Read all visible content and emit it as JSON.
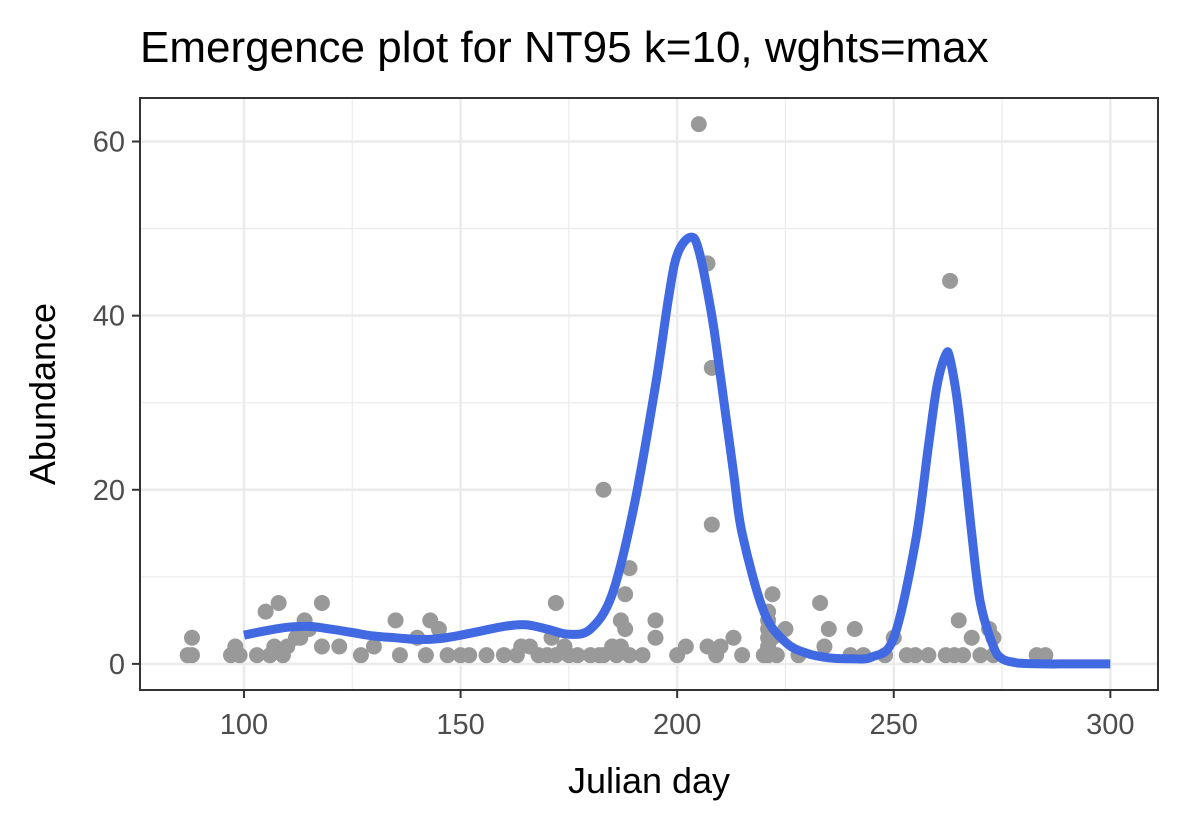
{
  "chart_data": {
    "type": "scatter",
    "title": "Emergence plot for NT95 k=10, wghts=max",
    "xlabel": "Julian day",
    "ylabel": "Abundance",
    "xlim": [
      76,
      311
    ],
    "ylim": [
      -3,
      65
    ],
    "xticks": [
      100,
      150,
      200,
      250,
      300
    ],
    "yticks": [
      0,
      20,
      40,
      60
    ],
    "xticks_minor": [
      125,
      175,
      225,
      275
    ],
    "yticks_minor": [
      10,
      30,
      50
    ],
    "grid": true,
    "legend": "none",
    "colors": {
      "points": "#999999",
      "curve": "#4169e1",
      "grid": "#ebebeb",
      "panel_border": "#333333",
      "tick_text": "#4d4d4d"
    },
    "series": [
      {
        "kind": "points",
        "x": [
          87,
          88,
          88,
          97,
          98,
          99,
          103,
          105,
          106,
          107,
          108,
          109,
          110,
          112,
          113,
          114,
          115,
          118,
          118,
          122,
          127,
          130,
          135,
          136,
          140,
          142,
          143,
          145,
          147,
          150,
          152,
          156,
          160,
          163,
          164,
          166,
          168,
          170,
          171,
          172,
          172,
          174,
          175,
          177,
          180,
          182,
          183,
          183,
          185,
          186,
          187,
          187,
          188,
          188,
          189,
          189,
          192,
          195,
          195,
          200,
          202,
          205,
          207,
          207,
          208,
          208,
          209,
          210,
          213,
          215,
          220,
          221,
          221,
          221,
          221,
          221,
          221,
          222,
          222,
          223,
          225,
          228,
          233,
          234,
          235,
          240,
          241,
          243,
          248,
          250,
          253,
          255,
          258,
          262,
          263,
          264,
          265,
          266,
          268,
          270,
          272,
          273,
          273,
          283,
          285
        ],
        "y": [
          1,
          1,
          3,
          1,
          2,
          1,
          1,
          6,
          1,
          2,
          7,
          1,
          2,
          3,
          3,
          5,
          4,
          7,
          2,
          2,
          1,
          2,
          5,
          1,
          3,
          1,
          5,
          4,
          1,
          1,
          1,
          1,
          1,
          1,
          2,
          2,
          1,
          1,
          3,
          1,
          7,
          2,
          1,
          1,
          1,
          1,
          1,
          20,
          2,
          1,
          5,
          2,
          8,
          4,
          11,
          1,
          1,
          5,
          3,
          1,
          2,
          62,
          46,
          2,
          34,
          16,
          1,
          2,
          3,
          1,
          1,
          1,
          2,
          3,
          4,
          5,
          6,
          8,
          3,
          1,
          4,
          1,
          7,
          2,
          4,
          1,
          4,
          1,
          1,
          3,
          1,
          1,
          1,
          1,
          44,
          1,
          5,
          1,
          3,
          1,
          4,
          1,
          3,
          1,
          1
        ]
      },
      {
        "kind": "smooth",
        "x": [
          100,
          105,
          110,
          115,
          120,
          125,
          130,
          135,
          140,
          145,
          150,
          155,
          160,
          165,
          170,
          175,
          180,
          185,
          190,
          195,
          198,
          200,
          203,
          205,
          208,
          210,
          213,
          215,
          220,
          225,
          230,
          235,
          240,
          245,
          250,
          255,
          258,
          260,
          262,
          263,
          265,
          268,
          270,
          273,
          275,
          278,
          280,
          285,
          290,
          295,
          300
        ],
        "y": [
          3.3,
          3.8,
          4.2,
          4.3,
          4.0,
          3.6,
          3.2,
          3.0,
          2.8,
          2.9,
          3.3,
          3.8,
          4.3,
          4.5,
          4.0,
          3.4,
          4.0,
          8.0,
          18.0,
          32.0,
          42.0,
          47.0,
          49.0,
          47.5,
          40.0,
          33.0,
          22.0,
          15.0,
          6.0,
          2.5,
          1.2,
          0.7,
          0.6,
          0.8,
          3.0,
          14.0,
          25.0,
          32.0,
          35.5,
          35.0,
          29.0,
          15.0,
          7.0,
          2.0,
          0.6,
          0.15,
          0.05,
          0.0,
          0.0,
          0.0,
          0.0
        ]
      }
    ]
  }
}
